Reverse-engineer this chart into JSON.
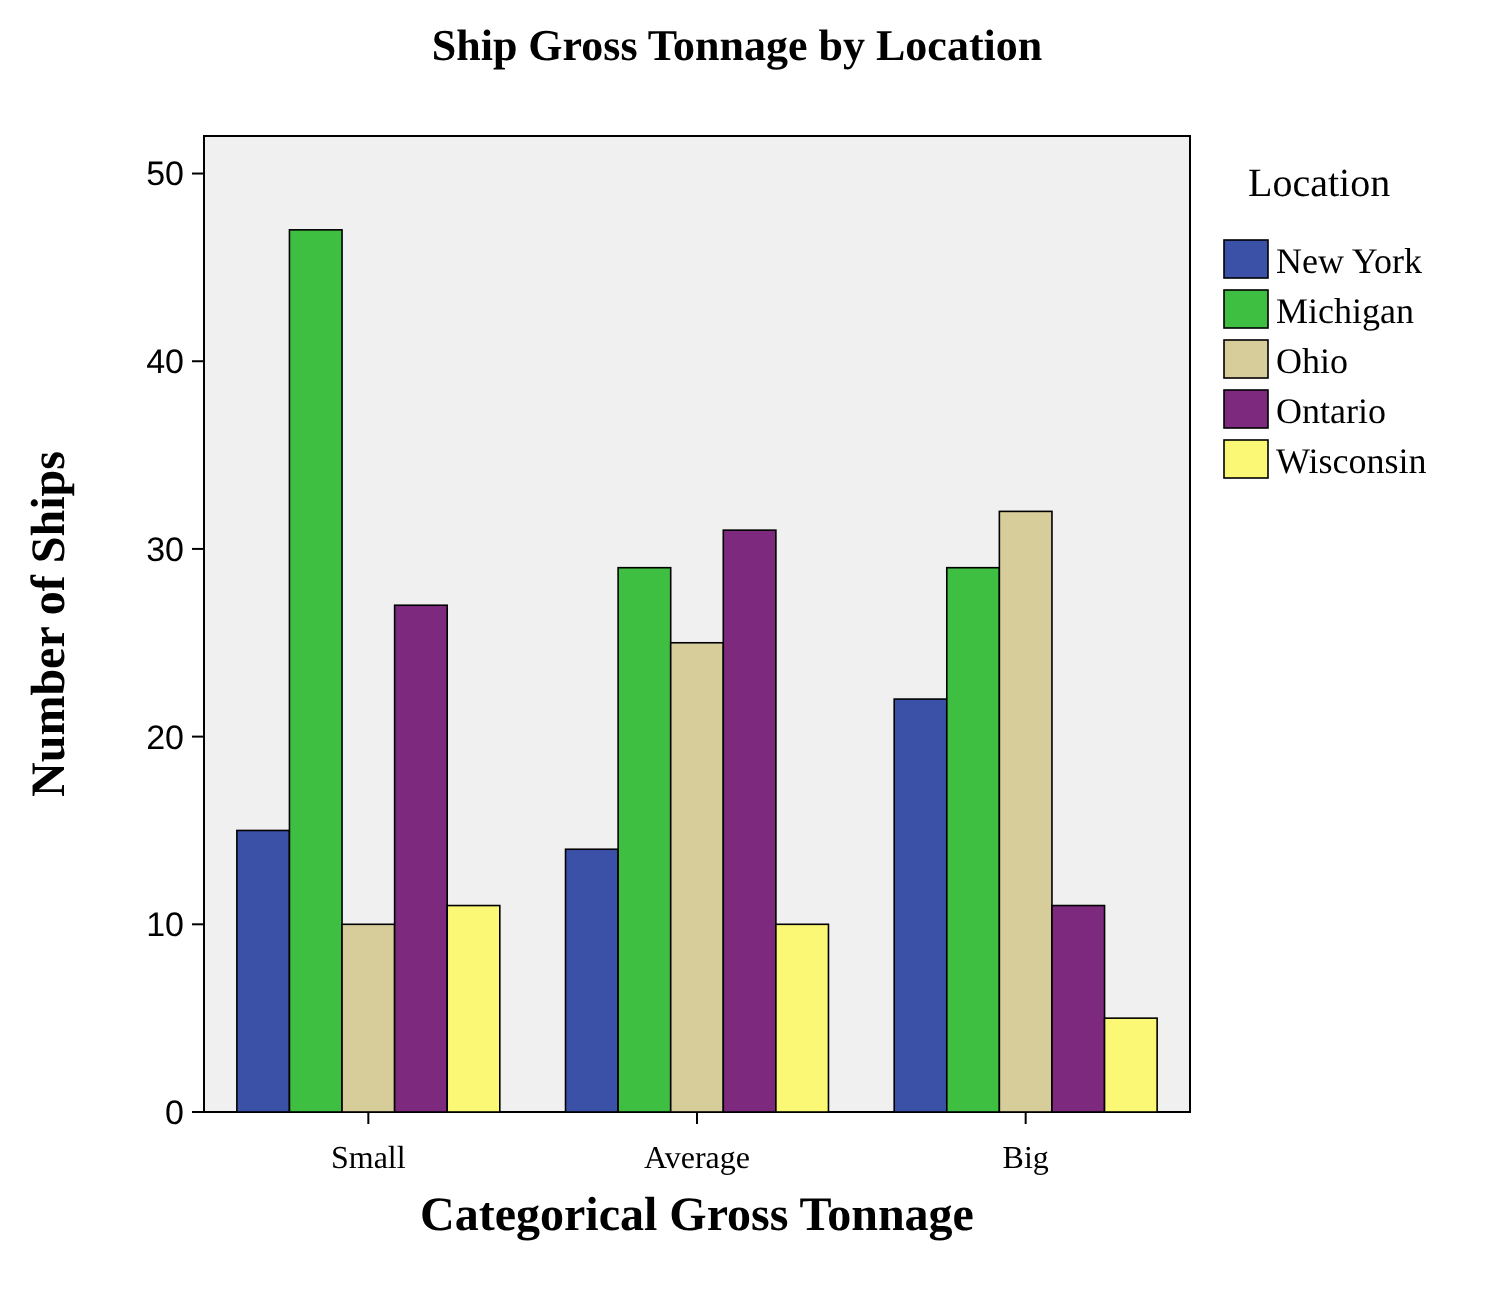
{
  "chart_data": {
    "type": "bar",
    "title": "Ship Gross Tonnage by Location",
    "xlabel": "Categorical Gross Tonnage",
    "ylabel": "Number of Ships",
    "legend_title": "Location",
    "categories": [
      "Small",
      "Average",
      "Big"
    ],
    "series": [
      {
        "name": "New York",
        "color": "#3b51a8",
        "values": [
          15,
          14,
          22
        ]
      },
      {
        "name": "Michigan",
        "color": "#3fbf41",
        "values": [
          47,
          29,
          29
        ]
      },
      {
        "name": "Ohio",
        "color": "#d6cd9a",
        "values": [
          10,
          25,
          32
        ]
      },
      {
        "name": "Ontario",
        "color": "#7d2a7e",
        "values": [
          27,
          31,
          11
        ]
      },
      {
        "name": "Wisconsin",
        "color": "#fbf876",
        "values": [
          11,
          10,
          5
        ]
      }
    ],
    "ylim": [
      0,
      52
    ],
    "yticks": [
      0,
      10,
      20,
      30,
      40,
      50
    ],
    "grid": false,
    "legend": "right"
  }
}
